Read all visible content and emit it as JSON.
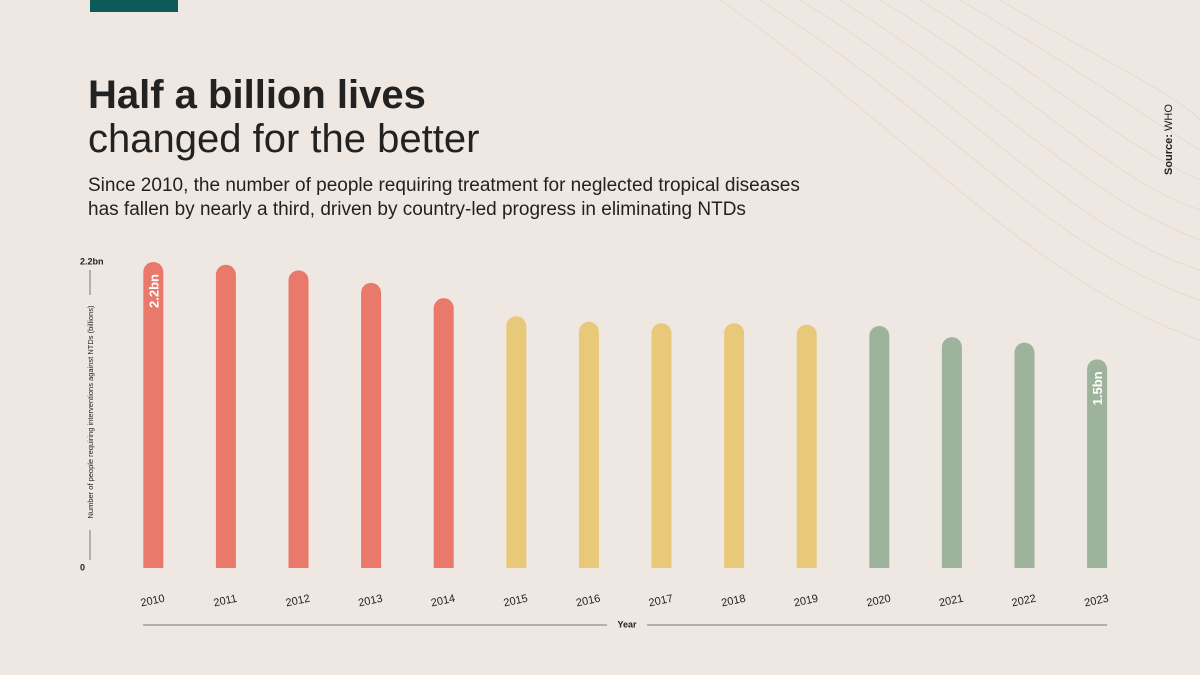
{
  "chart_data": {
    "type": "bar",
    "title": "Half a billion lives",
    "title_line2": "changed for the better",
    "subtitle_lines": [
      "Since 2010, the number of people requiring treatment for neglected tropical diseases",
      "has fallen by nearly a third, driven by country-led progress in eliminating NTDs"
    ],
    "source_label": "Source:",
    "source": "WHO",
    "y_label": "Number of people requiring interventions against NTDs (billions)",
    "x_label": "Year",
    "categories": [
      "2010",
      "2011",
      "2012",
      "2013",
      "2014",
      "2015",
      "2016",
      "2017",
      "2018",
      "2019",
      "2020",
      "2021",
      "2022",
      "2023"
    ],
    "values": [
      2.2,
      2.18,
      2.14,
      2.05,
      1.94,
      1.81,
      1.77,
      1.76,
      1.76,
      1.75,
      1.74,
      1.66,
      1.62,
      1.5
    ],
    "value_labels": [
      "2.2bn",
      null,
      null,
      null,
      null,
      null,
      null,
      null,
      null,
      null,
      null,
      null,
      null,
      "1.5bn"
    ],
    "colors": [
      "#e8796b",
      "#e8796b",
      "#e8796b",
      "#e8796b",
      "#e8796b",
      "#e8c879",
      "#e8c879",
      "#e8c879",
      "#e8c879",
      "#e8c879",
      "#9db39c",
      "#9db39c",
      "#9db39c",
      "#9db39c"
    ],
    "ylim": [
      0,
      2.2
    ],
    "yticks": [
      0,
      {
        "value": 2.2,
        "label": "2.2bn"
      }
    ]
  }
}
